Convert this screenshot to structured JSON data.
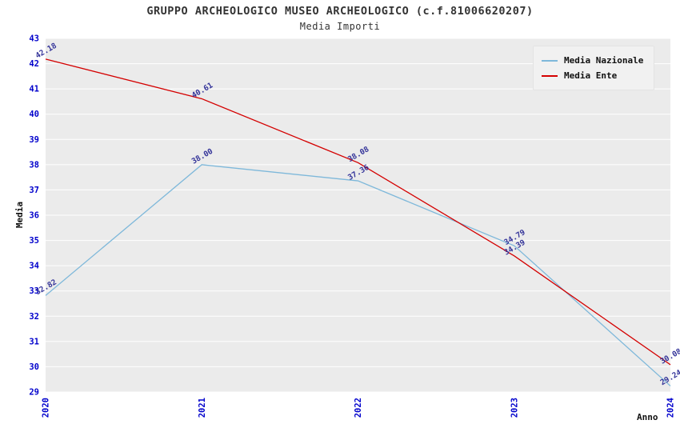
{
  "chart_data": {
    "type": "line",
    "title": "GRUPPO ARCHEOLOGICO MUSEO ARCHEOLOGICO (c.f.81006620207)",
    "subtitle": "Media Importi",
    "xlabel": "Anno",
    "ylabel": "Media",
    "x": [
      2020,
      2021,
      2022,
      2023,
      2024
    ],
    "series": [
      {
        "name": "Media Nazionale",
        "color": "#7eb8da",
        "values": [
          32.82,
          38.0,
          37.36,
          34.79,
          29.24
        ]
      },
      {
        "name": "Media Ente",
        "color": "#d40000",
        "values": [
          42.18,
          40.61,
          38.08,
          34.39,
          30.08
        ]
      }
    ],
    "ylim": [
      29,
      43
    ],
    "ytick_step": 1,
    "grid": "horizontal",
    "legend_position": "top-right",
    "point_labels_visible": true
  },
  "colors": {
    "tick_label": "#0000cc",
    "point_label": "#333399",
    "plot_background": "#ebebeb",
    "gridline": "#ffffff"
  }
}
